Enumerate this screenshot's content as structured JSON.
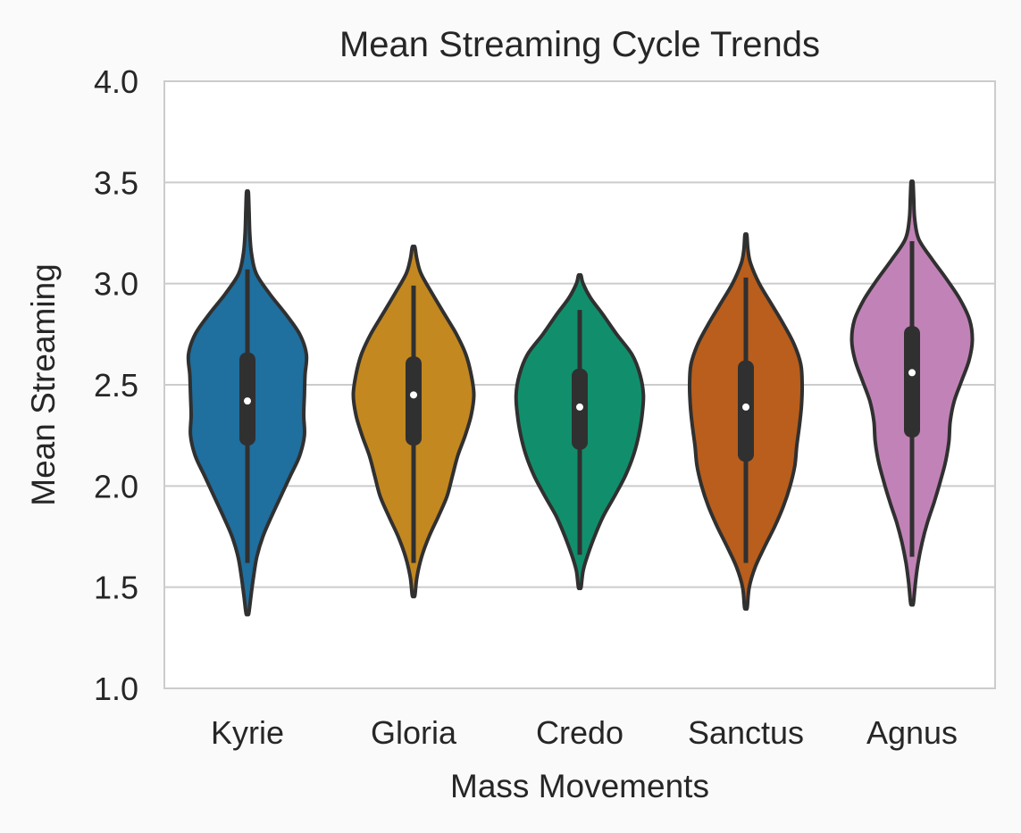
{
  "chart_data": {
    "type": "violin",
    "title": "Mean Streaming Cycle Trends",
    "xlabel": "Mass Movements",
    "ylabel": "Mean Streaming",
    "ylim": [
      1.0,
      4.0
    ],
    "yticks": [
      "1.0",
      "1.5",
      "2.0",
      "2.5",
      "3.0",
      "3.5",
      "4.0"
    ],
    "categories": [
      "Kyrie",
      "Gloria",
      "Credo",
      "Sanctus",
      "Agnus"
    ],
    "grid": "horizontal",
    "series": [
      {
        "category": "Kyrie",
        "color": "#1f6f9f",
        "min": 1.37,
        "max": 3.45,
        "q1": 2.2,
        "median": 2.42,
        "q3": 2.66,
        "whisker_low": 1.62,
        "whisker_high": 3.07,
        "density": [
          [
            1.37,
            0.02
          ],
          [
            1.45,
            0.05
          ],
          [
            1.55,
            0.09
          ],
          [
            1.65,
            0.14
          ],
          [
            1.75,
            0.23
          ],
          [
            1.85,
            0.36
          ],
          [
            1.95,
            0.5
          ],
          [
            2.05,
            0.64
          ],
          [
            2.15,
            0.78
          ],
          [
            2.25,
            0.85
          ],
          [
            2.35,
            0.84
          ],
          [
            2.45,
            0.85
          ],
          [
            2.55,
            0.86
          ],
          [
            2.65,
            0.88
          ],
          [
            2.75,
            0.78
          ],
          [
            2.85,
            0.57
          ],
          [
            2.95,
            0.33
          ],
          [
            3.05,
            0.13
          ],
          [
            3.15,
            0.06
          ],
          [
            3.25,
            0.035
          ],
          [
            3.35,
            0.025
          ],
          [
            3.45,
            0.015
          ]
        ]
      },
      {
        "category": "Gloria",
        "color": "#c38820",
        "min": 1.46,
        "max": 3.18,
        "q1": 2.2,
        "median": 2.45,
        "q3": 2.64,
        "whisker_low": 1.62,
        "whisker_high": 2.99,
        "density": [
          [
            1.46,
            0.02
          ],
          [
            1.55,
            0.05
          ],
          [
            1.65,
            0.12
          ],
          [
            1.75,
            0.23
          ],
          [
            1.85,
            0.37
          ],
          [
            1.95,
            0.5
          ],
          [
            2.05,
            0.58
          ],
          [
            2.15,
            0.66
          ],
          [
            2.25,
            0.77
          ],
          [
            2.35,
            0.86
          ],
          [
            2.45,
            0.9
          ],
          [
            2.55,
            0.86
          ],
          [
            2.65,
            0.78
          ],
          [
            2.75,
            0.64
          ],
          [
            2.85,
            0.46
          ],
          [
            2.95,
            0.28
          ],
          [
            3.05,
            0.11
          ],
          [
            3.12,
            0.05
          ],
          [
            3.18,
            0.02
          ]
        ]
      },
      {
        "category": "Credo",
        "color": "#118f6c",
        "min": 1.5,
        "max": 3.04,
        "q1": 2.18,
        "median": 2.39,
        "q3": 2.58,
        "whisker_low": 1.66,
        "whisker_high": 2.87,
        "density": [
          [
            1.5,
            0.02
          ],
          [
            1.58,
            0.05
          ],
          [
            1.65,
            0.11
          ],
          [
            1.75,
            0.22
          ],
          [
            1.85,
            0.35
          ],
          [
            1.95,
            0.52
          ],
          [
            2.05,
            0.68
          ],
          [
            2.15,
            0.8
          ],
          [
            2.25,
            0.88
          ],
          [
            2.35,
            0.93
          ],
          [
            2.45,
            0.95
          ],
          [
            2.55,
            0.9
          ],
          [
            2.65,
            0.78
          ],
          [
            2.75,
            0.55
          ],
          [
            2.85,
            0.34
          ],
          [
            2.93,
            0.16
          ],
          [
            3.0,
            0.05
          ],
          [
            3.04,
            0.02
          ]
        ]
      },
      {
        "category": "Sanctus",
        "color": "#b95e1c",
        "min": 1.4,
        "max": 3.24,
        "q1": 2.12,
        "median": 2.39,
        "q3": 2.62,
        "whisker_low": 1.62,
        "whisker_high": 3.03,
        "density": [
          [
            1.4,
            0.02
          ],
          [
            1.5,
            0.05
          ],
          [
            1.6,
            0.14
          ],
          [
            1.7,
            0.28
          ],
          [
            1.8,
            0.43
          ],
          [
            1.9,
            0.56
          ],
          [
            2.0,
            0.66
          ],
          [
            2.1,
            0.73
          ],
          [
            2.2,
            0.76
          ],
          [
            2.3,
            0.8
          ],
          [
            2.4,
            0.83
          ],
          [
            2.5,
            0.84
          ],
          [
            2.6,
            0.82
          ],
          [
            2.7,
            0.72
          ],
          [
            2.8,
            0.56
          ],
          [
            2.9,
            0.38
          ],
          [
            3.0,
            0.2
          ],
          [
            3.1,
            0.07
          ],
          [
            3.17,
            0.03
          ],
          [
            3.24,
            0.015
          ]
        ]
      },
      {
        "category": "Agnus",
        "color": "#c183b7",
        "min": 1.42,
        "max": 3.5,
        "q1": 2.24,
        "median": 2.56,
        "q3": 2.79,
        "whisker_low": 1.65,
        "whisker_high": 3.21,
        "density": [
          [
            1.42,
            0.02
          ],
          [
            1.52,
            0.05
          ],
          [
            1.62,
            0.09
          ],
          [
            1.72,
            0.15
          ],
          [
            1.82,
            0.23
          ],
          [
            1.92,
            0.33
          ],
          [
            2.02,
            0.42
          ],
          [
            2.12,
            0.5
          ],
          [
            2.22,
            0.55
          ],
          [
            2.32,
            0.57
          ],
          [
            2.42,
            0.63
          ],
          [
            2.52,
            0.74
          ],
          [
            2.62,
            0.85
          ],
          [
            2.72,
            0.9
          ],
          [
            2.82,
            0.86
          ],
          [
            2.92,
            0.72
          ],
          [
            3.02,
            0.52
          ],
          [
            3.12,
            0.3
          ],
          [
            3.22,
            0.1
          ],
          [
            3.32,
            0.04
          ],
          [
            3.42,
            0.025
          ],
          [
            3.5,
            0.015
          ]
        ]
      }
    ]
  }
}
